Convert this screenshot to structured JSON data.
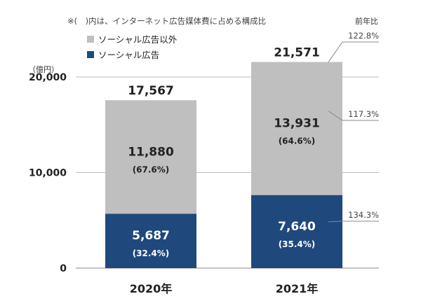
{
  "note": "※(　)内は、インターネット広告媒体費に占める構成比",
  "legend": [
    {
      "label": "ソーシャル広告以外",
      "color": "#bfbfbf"
    },
    {
      "label": "ソーシャル広告",
      "color": "#1f497d"
    }
  ],
  "yoy_header": "前年比",
  "y_unit": "（億円）",
  "chart_data": {
    "type": "bar",
    "stacked": true,
    "categories": [
      "2020年",
      "2021年"
    ],
    "totals": [
      "17,567",
      "21,571"
    ],
    "series": [
      {
        "name": "ソーシャル広告",
        "color": "#1f497d",
        "values": [
          5687,
          7640
        ],
        "labels": [
          "5,687",
          "7,640"
        ],
        "shares": [
          "(32.4%)",
          "(35.4%)"
        ]
      },
      {
        "name": "ソーシャル広告以外",
        "color": "#bfbfbf",
        "values": [
          11880,
          13931
        ],
        "labels": [
          "11,880",
          "13,931"
        ],
        "shares": [
          "(67.6%)",
          "(64.6%)"
        ]
      }
    ],
    "yoy": {
      "total": "122.8%",
      "other": "117.3%",
      "social": "134.3%"
    },
    "yticks": [
      {
        "value": 0,
        "label": "0"
      },
      {
        "value": 10000,
        "label": "10,000"
      },
      {
        "value": 20000,
        "label": "20,000"
      }
    ],
    "ylim": [
      0,
      20000
    ]
  }
}
